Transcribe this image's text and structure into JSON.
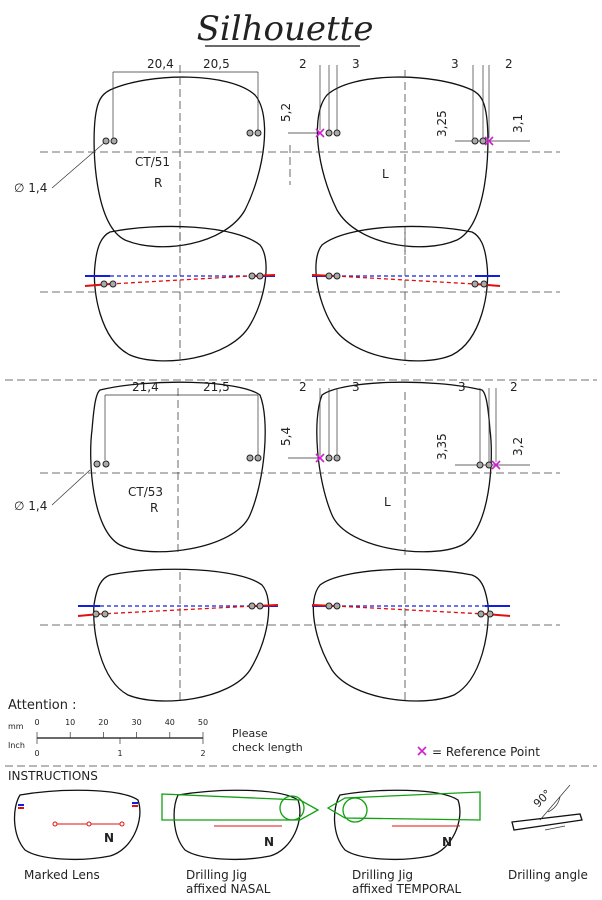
{
  "header": {
    "brand": "Silhouette"
  },
  "upper": {
    "front": {
      "dims": [
        "20,4",
        "20,5",
        "2",
        "3",
        "3",
        "2"
      ],
      "v_dims": [
        "5,2",
        "3,25",
        "3,1"
      ],
      "model": "CT/51",
      "right": "R",
      "left": "L",
      "hole": "∅ 1,4"
    }
  },
  "lower": {
    "front": {
      "dims": [
        "21,4",
        "21,5",
        "2",
        "3",
        "3",
        "2"
      ],
      "v_dims": [
        "5,4",
        "3,35",
        "3,2"
      ],
      "model": "CT/53",
      "right": "R",
      "left": "L",
      "hole": "∅ 1,4"
    }
  },
  "scale": {
    "attention": "Attention :",
    "mm_unit": "mm",
    "mm_ticks": [
      "0",
      "10",
      "20",
      "30",
      "40",
      "50"
    ],
    "inch_unit": "Inch",
    "inch_ticks": [
      "0",
      "1",
      "2"
    ],
    "note": [
      "Please",
      "check length"
    ],
    "reference": "= Reference Point"
  },
  "instructions": {
    "title": "INSTRUCTIONS",
    "marker": "N",
    "steps": [
      {
        "caption": [
          "Marked Lens"
        ]
      },
      {
        "caption": [
          "Drilling Jig",
          "affixed NASAL"
        ]
      },
      {
        "caption": [
          "Drilling Jig",
          "affixed TEMPORAL"
        ]
      },
      {
        "caption": [
          "Drilling angle"
        ]
      }
    ],
    "angle": "90°"
  }
}
